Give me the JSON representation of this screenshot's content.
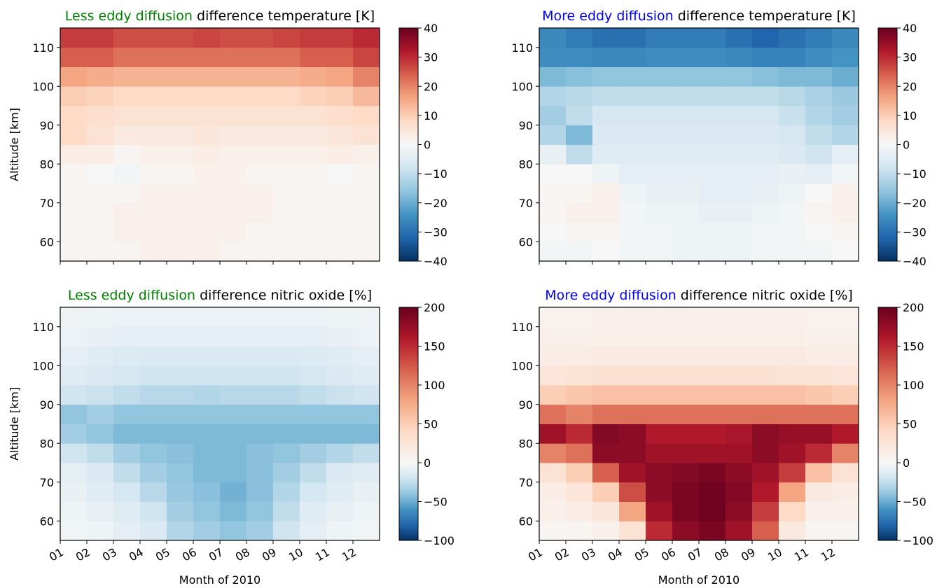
{
  "chart_data": [
    {
      "type": "heatmap",
      "title_highlight": "Less eddy diffusion",
      "title_highlight_color": "#008000",
      "title": "difference temperature [K]",
      "ylabel": "Altitude [km]",
      "xlim": [
        1,
        13
      ],
      "ylim": [
        55,
        115
      ],
      "xticks": [
        1,
        2,
        3,
        4,
        5,
        6,
        7,
        8,
        9,
        10,
        11,
        12
      ],
      "xtick_labels": false,
      "yticks": [
        60,
        70,
        80,
        90,
        100,
        110
      ],
      "colormap": "RdBu_r",
      "norm_center": 0,
      "clim": [
        -40,
        40
      ],
      "cticks": [
        {
          "value": -40,
          "label": "−40"
        },
        {
          "value": -30,
          "label": "−30"
        },
        {
          "value": -20,
          "label": "−20"
        },
        {
          "value": -10,
          "label": "−10"
        },
        0,
        10,
        20,
        30,
        40
      ],
      "xbins": [
        1,
        2,
        3,
        4,
        5,
        6,
        7,
        8,
        9,
        10,
        11,
        12,
        13
      ],
      "ybins": [
        55,
        60,
        65,
        70,
        75,
        80,
        85,
        90,
        95,
        100,
        105,
        110,
        115
      ],
      "values": [
        [
          1,
          1,
          1,
          2,
          2,
          2,
          1,
          1,
          1,
          1,
          1,
          1
        ],
        [
          1,
          1,
          2,
          2,
          2,
          2,
          2,
          1,
          1,
          1,
          1,
          1
        ],
        [
          1,
          1,
          2,
          2,
          2,
          2,
          2,
          2,
          1,
          1,
          1,
          1
        ],
        [
          1,
          1,
          1,
          2,
          2,
          2,
          2,
          2,
          1,
          1,
          1,
          1
        ],
        [
          1,
          0,
          -1,
          1,
          1,
          2,
          2,
          1,
          1,
          1,
          0,
          1
        ],
        [
          3,
          3,
          1,
          2,
          2,
          3,
          2,
          2,
          2,
          2,
          3,
          2
        ],
        [
          8,
          6,
          4,
          4,
          4,
          5,
          4,
          4,
          4,
          4,
          5,
          6
        ],
        [
          8,
          7,
          6,
          6,
          6,
          6,
          6,
          6,
          6,
          6,
          7,
          8
        ],
        [
          10,
          9,
          8,
          8,
          8,
          8,
          8,
          8,
          8,
          9,
          10,
          13
        ],
        [
          16,
          15,
          14,
          14,
          14,
          14,
          14,
          14,
          14,
          15,
          16,
          20
        ],
        [
          24,
          24,
          22,
          22,
          22,
          22,
          22,
          22,
          22,
          24,
          24,
          27
        ],
        [
          28,
          28,
          26,
          26,
          26,
          27,
          26,
          26,
          27,
          28,
          28,
          30
        ]
      ]
    },
    {
      "type": "heatmap",
      "title_highlight": "More eddy diffusion",
      "title_highlight_color": "#0000ff",
      "title": "difference temperature [K]",
      "xlim": [
        1,
        13
      ],
      "ylim": [
        55,
        115
      ],
      "xticks": [
        1,
        2,
        3,
        4,
        5,
        6,
        7,
        8,
        9,
        10,
        11,
        12
      ],
      "xtick_labels": false,
      "yticks": [
        60,
        70,
        80,
        90,
        100,
        110
      ],
      "colormap": "RdBu_r",
      "norm_center": 0,
      "clim": [
        -40,
        40
      ],
      "cticks": [
        {
          "value": -40,
          "label": "−40"
        },
        {
          "value": -30,
          "label": "−30"
        },
        {
          "value": -20,
          "label": "−20"
        },
        {
          "value": -10,
          "label": "−10"
        },
        0,
        10,
        20,
        30,
        40
      ],
      "xbins": [
        1,
        2,
        3,
        4,
        5,
        6,
        7,
        8,
        9,
        10,
        11,
        12,
        13
      ],
      "ybins": [
        55,
        60,
        65,
        70,
        75,
        80,
        85,
        90,
        95,
        100,
        105,
        110,
        115
      ],
      "values": [
        [
          -1,
          -1,
          0,
          -1,
          -1,
          -2,
          -2,
          -2,
          -1,
          -1,
          -1,
          0
        ],
        [
          0,
          1,
          1,
          -1,
          -1,
          -2,
          -2,
          -2,
          -1,
          -1,
          0,
          1
        ],
        [
          1,
          2,
          2,
          -1,
          -2,
          -2,
          -3,
          -3,
          -2,
          -1,
          1,
          2
        ],
        [
          1,
          1,
          2,
          -2,
          -3,
          -3,
          -4,
          -4,
          -3,
          -2,
          0,
          2
        ],
        [
          0,
          0,
          -2,
          -4,
          -4,
          -4,
          -4,
          -4,
          -4,
          -3,
          -4,
          -1
        ],
        [
          -3,
          -10,
          -5,
          -5,
          -5,
          -5,
          -5,
          -5,
          -5,
          -6,
          -8,
          -4
        ],
        [
          -12,
          -18,
          -6,
          -6,
          -6,
          -6,
          -6,
          -6,
          -6,
          -7,
          -10,
          -12
        ],
        [
          -14,
          -10,
          -7,
          -7,
          -7,
          -7,
          -7,
          -7,
          -7,
          -9,
          -12,
          -14
        ],
        [
          -12,
          -11,
          -10,
          -10,
          -10,
          -10,
          -10,
          -10,
          -10,
          -11,
          -13,
          -15
        ],
        [
          -18,
          -17,
          -16,
          -16,
          -16,
          -16,
          -16,
          -16,
          -17,
          -18,
          -18,
          -20
        ],
        [
          -25,
          -25,
          -26,
          -26,
          -25,
          -25,
          -25,
          -26,
          -27,
          -27,
          -25,
          -24
        ],
        [
          -26,
          -28,
          -30,
          -30,
          -28,
          -28,
          -28,
          -30,
          -32,
          -30,
          -28,
          -26
        ]
      ]
    },
    {
      "type": "heatmap",
      "title_highlight": "Less eddy diffusion",
      "title_highlight_color": "#008000",
      "title": "difference nitric oxide [%]",
      "ylabel": "Altitude [km]",
      "xlabel": "Month of 2010",
      "xlim": [
        1,
        13
      ],
      "ylim": [
        55,
        115
      ],
      "xticks": [
        {
          "value": 1,
          "label": "01"
        },
        {
          "value": 2,
          "label": "02"
        },
        {
          "value": 3,
          "label": "03"
        },
        {
          "value": 4,
          "label": "04"
        },
        {
          "value": 5,
          "label": "05"
        },
        {
          "value": 6,
          "label": "06"
        },
        {
          "value": 7,
          "label": "07"
        },
        {
          "value": 8,
          "label": "08"
        },
        {
          "value": 9,
          "label": "09"
        },
        10,
        11,
        12
      ],
      "xtick_labels": true,
      "yticks": [
        60,
        70,
        80,
        90,
        100,
        110
      ],
      "colormap": "RdBu_r",
      "norm_center": 0,
      "clim": [
        -100,
        200
      ],
      "cticks": [
        {
          "value": -100,
          "label": "−100"
        },
        {
          "value": -50,
          "label": "−50"
        },
        0,
        50,
        100,
        150,
        200
      ],
      "xbins": [
        1,
        2,
        3,
        4,
        5,
        6,
        7,
        8,
        9,
        10,
        11,
        12,
        13
      ],
      "ybins": [
        55,
        60,
        65,
        70,
        75,
        80,
        85,
        90,
        95,
        100,
        105,
        110,
        115
      ],
      "values": [
        [
          -3,
          -5,
          -10,
          -15,
          -30,
          -35,
          -40,
          -35,
          -20,
          -10,
          -5,
          -3
        ],
        [
          -5,
          -8,
          -12,
          -20,
          -35,
          -40,
          -45,
          -40,
          -25,
          -12,
          -8,
          -5
        ],
        [
          -8,
          -12,
          -18,
          -28,
          -38,
          -42,
          -48,
          -42,
          -30,
          -18,
          -12,
          -8
        ],
        [
          -10,
          -15,
          -25,
          -35,
          -40,
          -45,
          -45,
          -42,
          -35,
          -25,
          -15,
          -12
        ],
        [
          -20,
          -25,
          -35,
          -40,
          -42,
          -45,
          -45,
          -42,
          -40,
          -35,
          -30,
          -25
        ],
        [
          -35,
          -40,
          -45,
          -45,
          -45,
          -45,
          -45,
          -45,
          -45,
          -45,
          -45,
          -45
        ],
        [
          -40,
          -35,
          -40,
          -40,
          -40,
          -40,
          -40,
          -40,
          -40,
          -40,
          -40,
          -40
        ],
        [
          -20,
          -22,
          -25,
          -28,
          -28,
          -30,
          -28,
          -28,
          -28,
          -25,
          -22,
          -20
        ],
        [
          -12,
          -15,
          -18,
          -20,
          -20,
          -20,
          -20,
          -20,
          -20,
          -18,
          -15,
          -12
        ],
        [
          -10,
          -12,
          -14,
          -15,
          -15,
          -15,
          -15,
          -15,
          -15,
          -14,
          -12,
          -10
        ],
        [
          -6,
          -8,
          -10,
          -10,
          -10,
          -10,
          -10,
          -10,
          -10,
          -10,
          -8,
          -6
        ],
        [
          -4,
          -5,
          -6,
          -6,
          -6,
          -6,
          -6,
          -6,
          -6,
          -6,
          -5,
          -4
        ]
      ]
    },
    {
      "type": "heatmap",
      "title_highlight": "More eddy diffusion",
      "title_highlight_color": "#0000ff",
      "title": "difference nitric oxide [%]",
      "xlabel": "Month of 2010",
      "xlim": [
        1,
        13
      ],
      "ylim": [
        55,
        115
      ],
      "xticks": [
        {
          "value": 1,
          "label": "01"
        },
        {
          "value": 2,
          "label": "02"
        },
        {
          "value": 3,
          "label": "03"
        },
        {
          "value": 4,
          "label": "04"
        },
        {
          "value": 5,
          "label": "05"
        },
        {
          "value": 6,
          "label": "06"
        },
        {
          "value": 7,
          "label": "07"
        },
        {
          "value": 8,
          "label": "08"
        },
        {
          "value": 9,
          "label": "09"
        },
        10,
        11,
        12
      ],
      "xtick_labels": true,
      "yticks": [
        60,
        70,
        80,
        90,
        100,
        110
      ],
      "colormap": "RdBu_r",
      "norm_center": 0,
      "clim": [
        -100,
        200
      ],
      "cticks": [
        {
          "value": -100,
          "label": "−100"
        },
        {
          "value": -50,
          "label": "−50"
        },
        0,
        50,
        100,
        150,
        200
      ],
      "xbins": [
        1,
        2,
        3,
        4,
        5,
        6,
        7,
        8,
        9,
        10,
        11,
        12,
        13
      ],
      "ybins": [
        55,
        60,
        65,
        70,
        75,
        80,
        85,
        90,
        95,
        100,
        105,
        110,
        115
      ],
      "values": [
        [
          5,
          5,
          10,
          30,
          150,
          180,
          190,
          170,
          120,
          20,
          5,
          5
        ],
        [
          10,
          15,
          25,
          80,
          170,
          190,
          195,
          180,
          140,
          40,
          10,
          10
        ],
        [
          15,
          25,
          50,
          130,
          180,
          190,
          195,
          185,
          160,
          80,
          20,
          15
        ],
        [
          30,
          50,
          120,
          170,
          180,
          185,
          190,
          180,
          170,
          140,
          60,
          30
        ],
        [
          100,
          110,
          180,
          180,
          170,
          170,
          170,
          170,
          180,
          170,
          150,
          100
        ],
        [
          170,
          150,
          185,
          180,
          160,
          160,
          160,
          165,
          180,
          175,
          175,
          160
        ],
        [
          110,
          100,
          110,
          110,
          110,
          110,
          110,
          110,
          110,
          110,
          110,
          110
        ],
        [
          50,
          55,
          60,
          60,
          60,
          60,
          60,
          60,
          60,
          60,
          55,
          50
        ],
        [
          25,
          28,
          30,
          30,
          30,
          30,
          30,
          30,
          30,
          28,
          28,
          25
        ],
        [
          15,
          15,
          18,
          18,
          18,
          18,
          18,
          18,
          18,
          18,
          15,
          15
        ],
        [
          10,
          10,
          12,
          12,
          12,
          12,
          12,
          12,
          12,
          12,
          10,
          10
        ],
        [
          8,
          8,
          10,
          10,
          10,
          10,
          10,
          10,
          10,
          10,
          8,
          8
        ]
      ]
    }
  ]
}
